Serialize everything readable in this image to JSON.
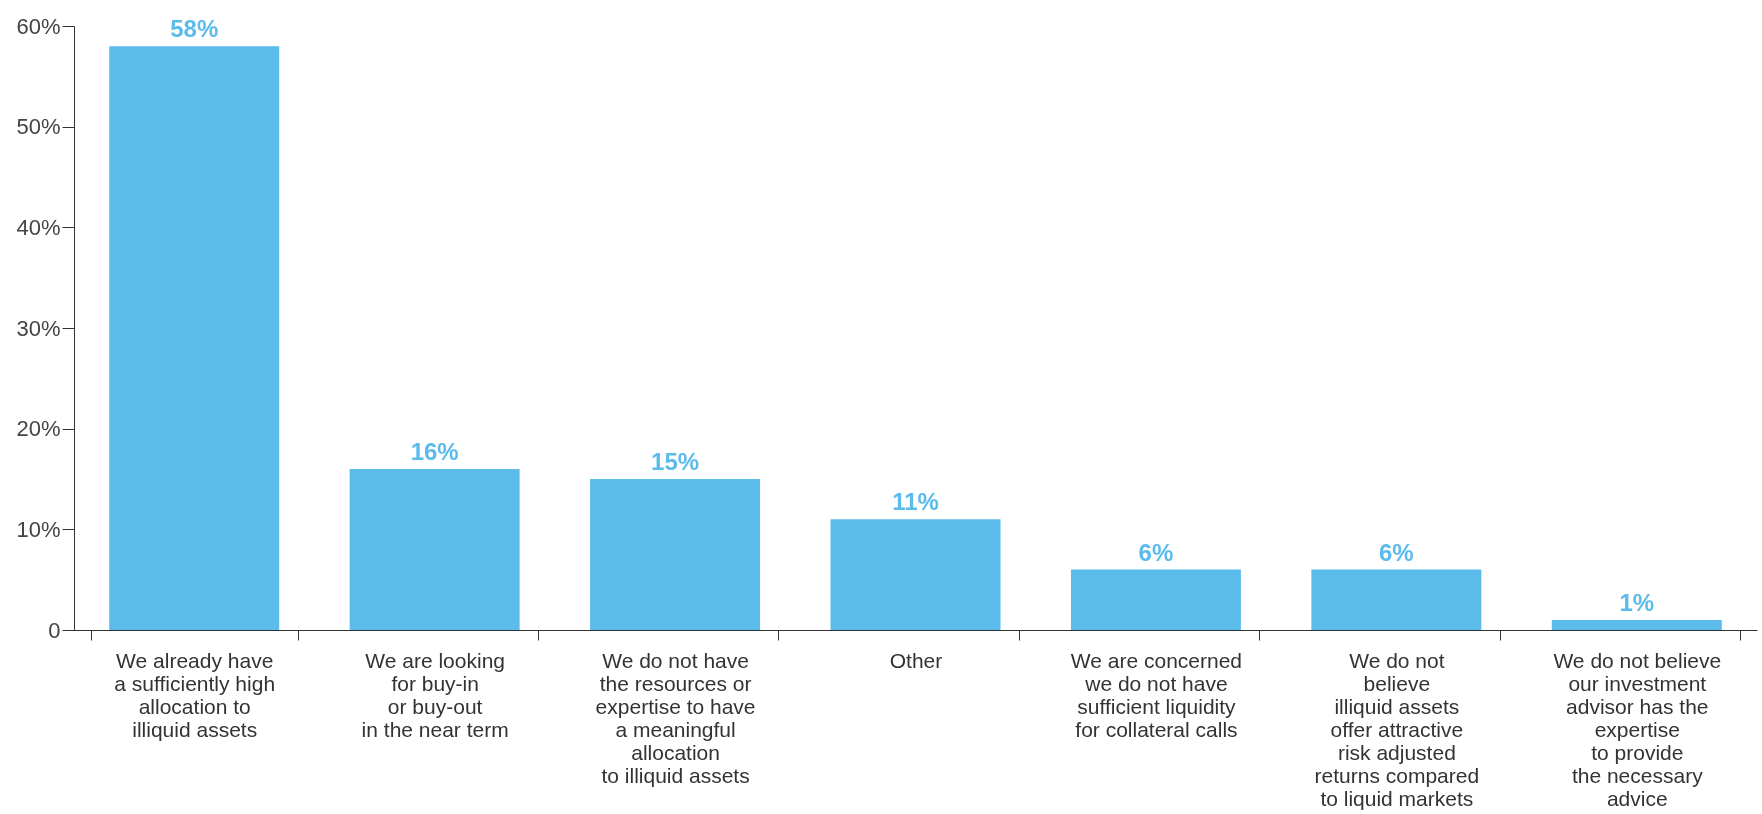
{
  "chart_data": {
    "type": "bar",
    "categories": [
      "We already have\na sufficiently high\nallocation to\nilliquid assets",
      "We are looking\nfor buy-in\nor buy-out\nin the near term",
      "We do not have\nthe resources or\nexpertise to have\na meaningful\nallocation\nto illiquid assets",
      "Other",
      "We are concerned\nwe do not have\nsufficient liquidity\nfor collateral calls",
      "We do not\nbelieve\nilliquid assets\noffer attractive\nrisk adjusted\nreturns compared\nto liquid markets",
      "We do not believe\nour  investment\nadvisor has the\nexpertise\nto provide\nthe necessary\nadvice"
    ],
    "values": [
      58,
      16,
      15,
      11,
      6,
      6,
      1
    ],
    "value_labels": [
      "58%",
      "16%",
      "15%",
      "11%",
      "6%",
      "6%",
      "1%"
    ],
    "color": "#5bbcec",
    "ylim": [
      0,
      60
    ],
    "yticks": [
      0,
      {
        "value": 10,
        "label": "10%"
      },
      {
        "value": 20,
        "label": "20%"
      },
      {
        "value": 30,
        "label": "30%"
      },
      {
        "value": 40,
        "label": "40%"
      },
      {
        "value": 50,
        "label": "50%"
      },
      {
        "value": 60,
        "label": "60%"
      }
    ],
    "grid": false
  }
}
